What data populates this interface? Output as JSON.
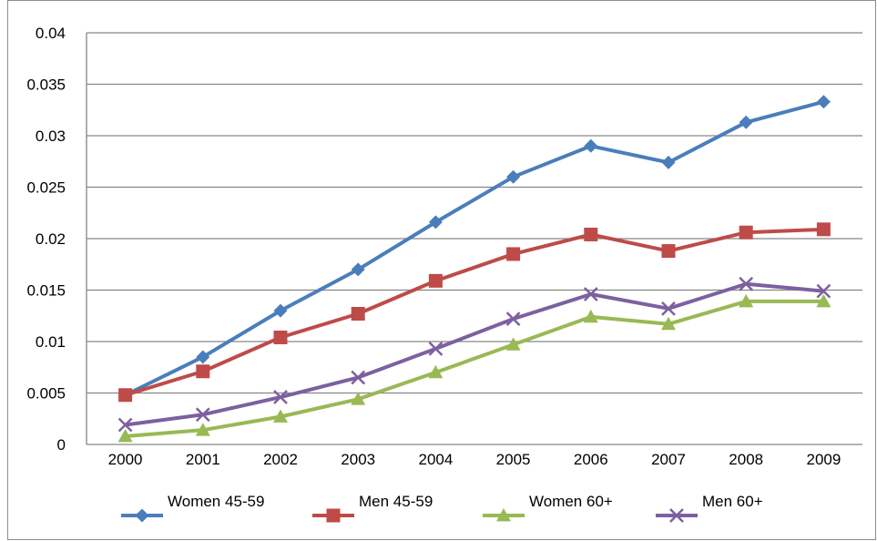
{
  "chart_data": {
    "type": "line",
    "title": "",
    "xlabel": "",
    "ylabel": "",
    "categories": [
      "2000",
      "2001",
      "2002",
      "2003",
      "2004",
      "2005",
      "2006",
      "2007",
      "2008",
      "2009"
    ],
    "ylim": [
      0,
      0.04
    ],
    "yticks": [
      0,
      0.005,
      0.01,
      0.015,
      0.02,
      0.025,
      0.03,
      0.035,
      0.04
    ],
    "ytick_labels": [
      "0",
      "0.005",
      "0.01",
      "0.015",
      "0.02",
      "0.025",
      "0.03",
      "0.035",
      "0.04"
    ],
    "grid": "horizontal",
    "legend_position": "bottom",
    "series": [
      {
        "name": "Women 45-59",
        "color": "#4a7ebb",
        "marker": "diamond",
        "values": [
          0.0048,
          0.0085,
          0.013,
          0.017,
          0.0216,
          0.026,
          0.029,
          0.0274,
          0.0313,
          0.0333
        ]
      },
      {
        "name": "Men 45-59",
        "color": "#be4b48",
        "marker": "square",
        "values": [
          0.0048,
          0.0071,
          0.0104,
          0.0127,
          0.0159,
          0.0185,
          0.0204,
          0.0188,
          0.0206,
          0.0209
        ]
      },
      {
        "name": "Women 60+",
        "color": "#98b954",
        "marker": "triangle",
        "values": [
          0.0008,
          0.0014,
          0.0027,
          0.0044,
          0.007,
          0.0097,
          0.0124,
          0.0117,
          0.0139,
          0.0139
        ]
      },
      {
        "name": "Men 60+",
        "color": "#7d60a0",
        "marker": "x",
        "values": [
          0.0019,
          0.0029,
          0.0046,
          0.0065,
          0.0093,
          0.0122,
          0.0146,
          0.0132,
          0.0156,
          0.0149
        ]
      }
    ]
  }
}
